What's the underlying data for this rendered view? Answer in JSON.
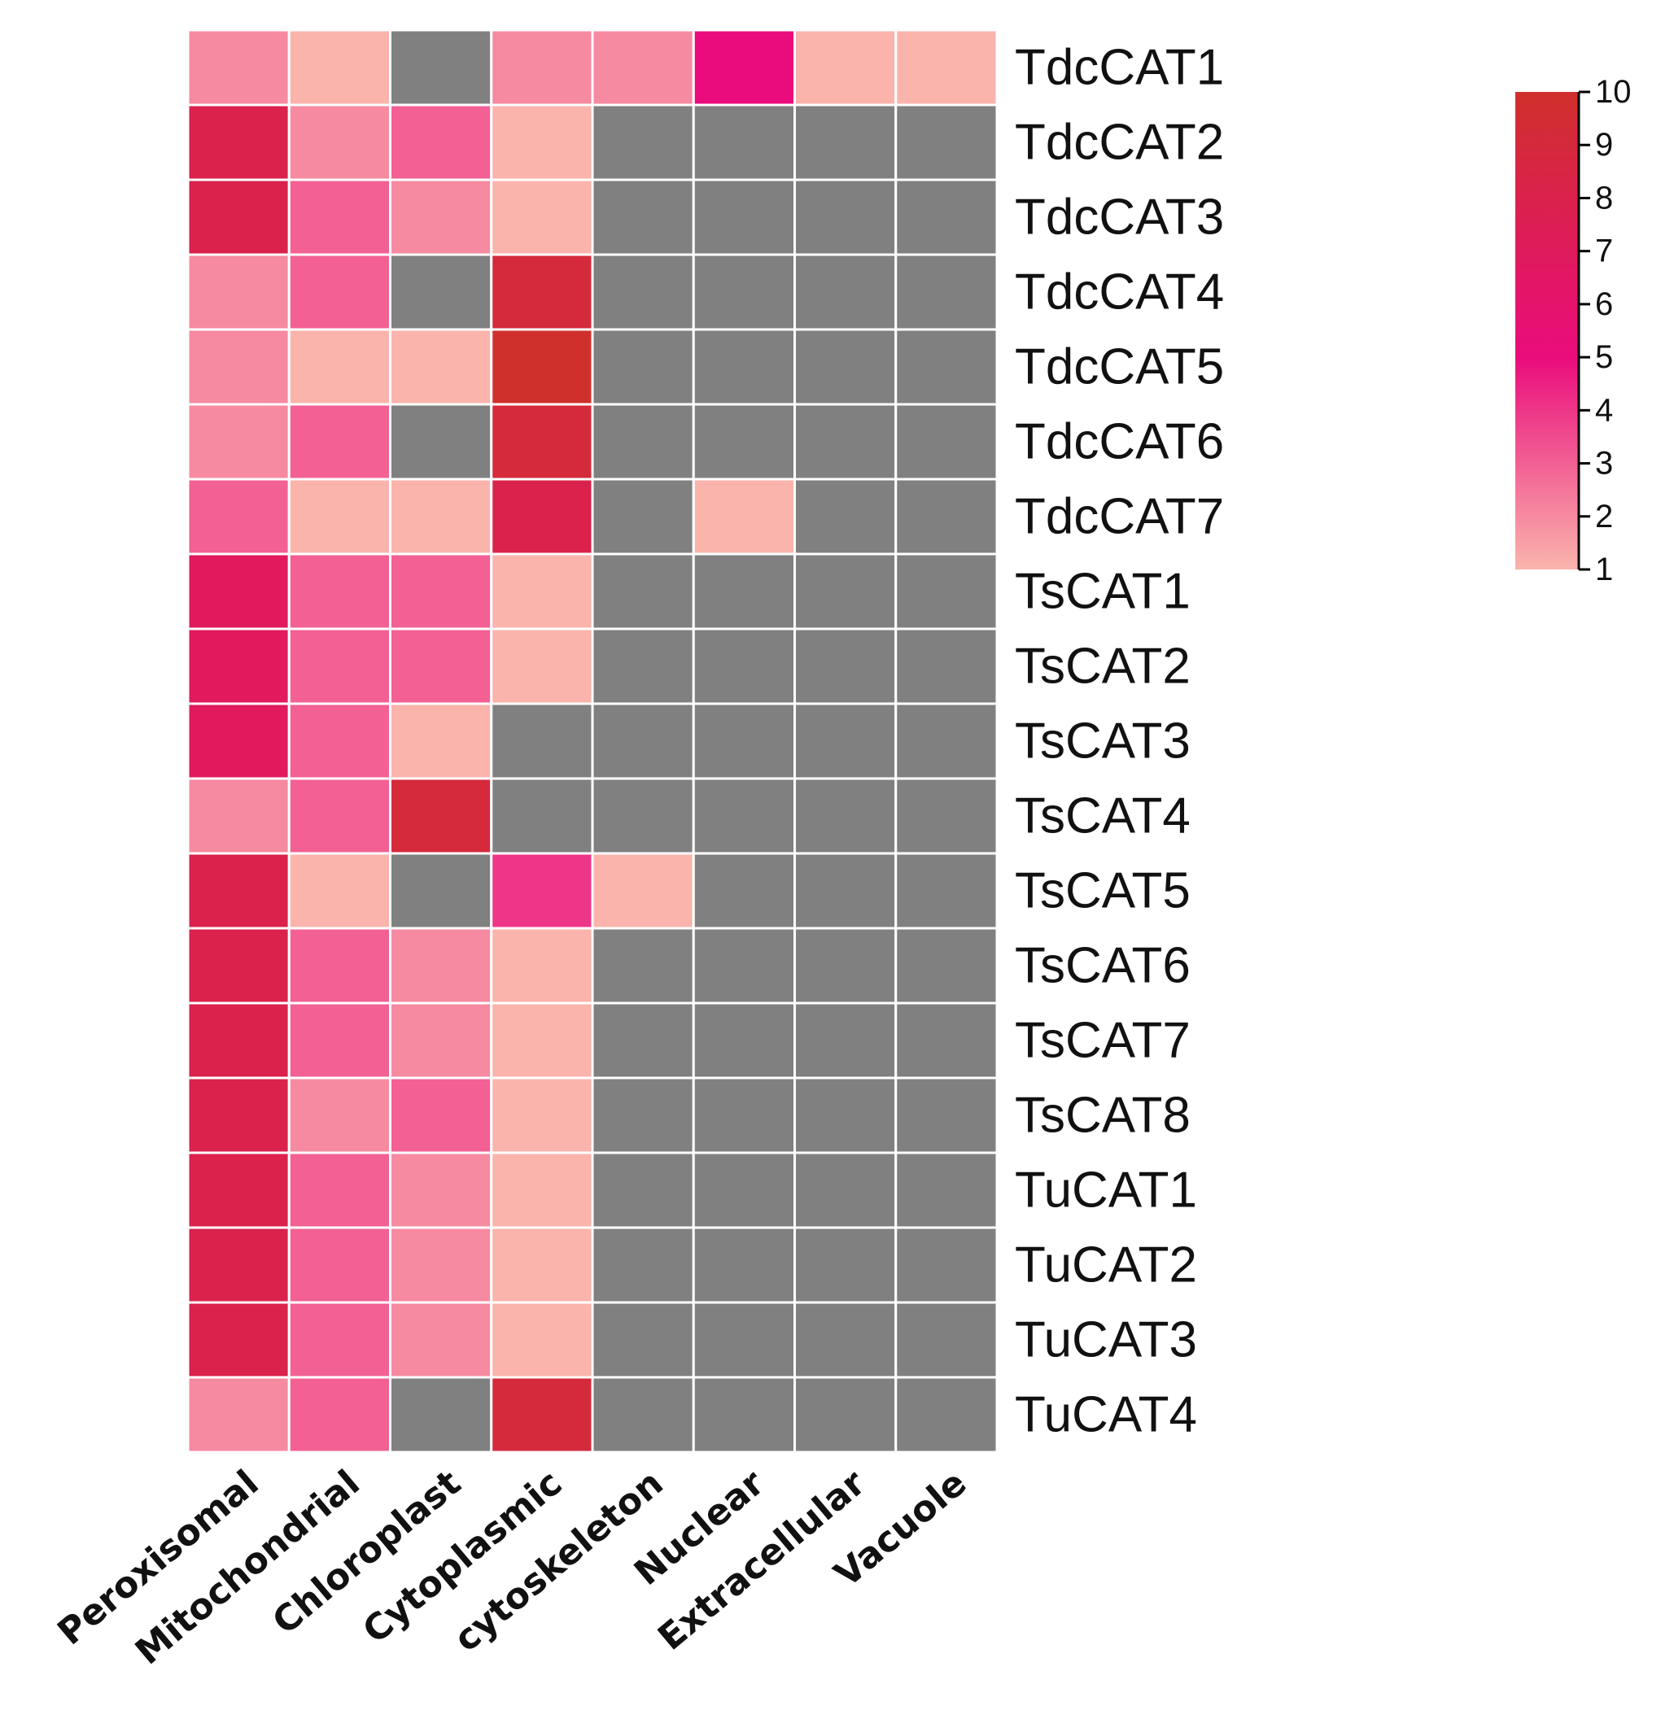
{
  "chart_data": {
    "type": "heatmap",
    "title": "",
    "xlabel": "",
    "ylabel": "",
    "columns": [
      "Peroxisomal",
      "Mitochondrial",
      "Chloroplast",
      "Cytoplasmic",
      "cytoskeleton",
      "Nuclear",
      "Extracellular",
      "Vacuole"
    ],
    "rows": [
      "TdcCAT1",
      "TdcCAT2",
      "TdcCAT3",
      "TdcCAT4",
      "TdcCAT5",
      "TdcCAT6",
      "TdcCAT7",
      "TsCAT1",
      "TsCAT2",
      "TsCAT3",
      "TsCAT4",
      "TsCAT5",
      "TsCAT6",
      "TsCAT7",
      "TsCAT8",
      "TuCAT1",
      "TuCAT2",
      "TuCAT3",
      "TuCAT4"
    ],
    "values": [
      [
        2,
        1,
        null,
        2,
        2,
        5,
        1,
        1
      ],
      [
        8,
        2,
        3,
        1,
        null,
        null,
        null,
        null
      ],
      [
        8,
        3,
        2,
        1,
        null,
        null,
        null,
        null
      ],
      [
        2,
        3,
        null,
        9,
        null,
        null,
        null,
        null
      ],
      [
        2,
        1,
        1,
        10,
        null,
        null,
        null,
        null
      ],
      [
        2,
        3,
        null,
        9,
        null,
        null,
        null,
        null
      ],
      [
        3,
        1,
        1,
        8,
        null,
        1,
        null,
        null
      ],
      [
        7,
        3,
        3,
        1,
        null,
        null,
        null,
        null
      ],
      [
        7,
        3,
        3,
        1,
        null,
        null,
        null,
        null
      ],
      [
        7,
        3,
        1,
        null,
        null,
        null,
        null,
        null
      ],
      [
        2,
        3,
        9,
        null,
        null,
        null,
        null,
        null
      ],
      [
        8,
        1,
        null,
        4,
        1,
        null,
        null,
        null
      ],
      [
        8,
        3,
        2,
        1,
        null,
        null,
        null,
        null
      ],
      [
        8,
        3,
        2,
        1,
        null,
        null,
        null,
        null
      ],
      [
        8,
        2,
        3,
        1,
        null,
        null,
        null,
        null
      ],
      [
        8,
        3,
        2,
        1,
        null,
        null,
        null,
        null
      ],
      [
        8,
        3,
        2,
        1,
        null,
        null,
        null,
        null
      ],
      [
        8,
        3,
        2,
        1,
        null,
        null,
        null,
        null
      ],
      [
        2,
        3,
        null,
        9,
        null,
        null,
        null,
        null
      ]
    ],
    "missing_color": "#808080",
    "colorbar": {
      "range": [
        1,
        10
      ],
      "ticks": [
        1,
        2,
        3,
        4,
        5,
        6,
        7,
        8,
        9,
        10
      ],
      "placement": "right",
      "stops": [
        {
          "value": 1,
          "color": "#fab4ac"
        },
        {
          "value": 5,
          "color": "#ea0c7c"
        },
        {
          "value": 10,
          "color": "#d0302c"
        }
      ]
    }
  }
}
